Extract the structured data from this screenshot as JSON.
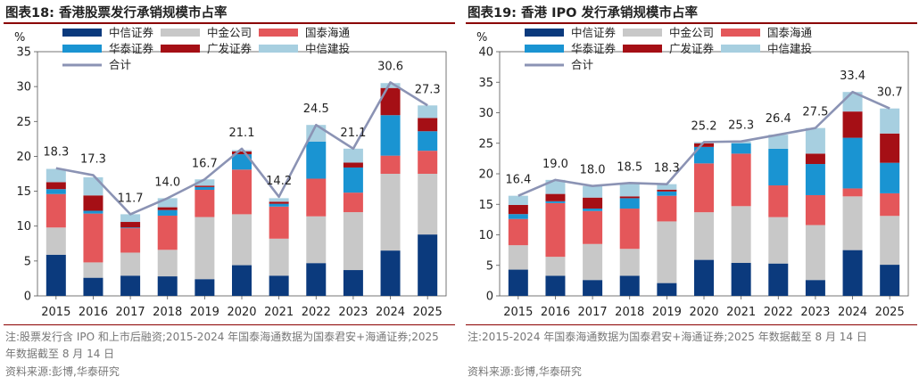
{
  "colors": {
    "citic": "#0b3a7d",
    "cicc": "#c8c8c8",
    "guotai_haitong": "#e4575a",
    "huatai": "#1a94d2",
    "gf": "#a50f15",
    "citic_construction": "#a7cfe0",
    "total_line": "#8b93b4",
    "rule": "#8b0000"
  },
  "chart_data": [
    {
      "type": "bar",
      "stacked": true,
      "title": "图表18:  香港股票发行承销规模市占率",
      "ylabel": "%",
      "ylim": [
        0,
        35
      ],
      "yticks": [
        0,
        5,
        10,
        15,
        20,
        25,
        30,
        35
      ],
      "categories": [
        "2015",
        "2016",
        "2017",
        "2018",
        "2019",
        "2020",
        "2021",
        "2022",
        "2023",
        "2024",
        "2025"
      ],
      "series": [
        {
          "name": "中信证券",
          "key": "citic",
          "values": [
            5.9,
            2.6,
            2.9,
            2.8,
            2.4,
            4.4,
            2.9,
            4.7,
            3.7,
            6.5,
            8.8
          ]
        },
        {
          "name": "中金公司",
          "key": "cicc",
          "values": [
            3.9,
            2.2,
            3.3,
            3.8,
            8.9,
            7.3,
            5.3,
            6.7,
            8.3,
            11.0,
            8.7
          ]
        },
        {
          "name": "国泰海通",
          "key": "guotai_haitong",
          "values": [
            4.8,
            7.0,
            3.5,
            4.9,
            3.9,
            6.4,
            4.6,
            5.4,
            2.8,
            2.6,
            3.3
          ]
        },
        {
          "name": "华泰证券",
          "key": "huatai",
          "values": [
            0.7,
            0.4,
            0.1,
            0.8,
            0.4,
            2.2,
            0.4,
            5.3,
            3.6,
            5.8,
            2.8
          ]
        },
        {
          "name": "广发证券",
          "key": "gf",
          "values": [
            1.0,
            2.2,
            0.8,
            0.4,
            0.2,
            0.4,
            0.3,
            0.0,
            0.7,
            3.9,
            1.9
          ]
        },
        {
          "name": "中信建投",
          "key": "citic_construction",
          "values": [
            1.9,
            2.6,
            1.1,
            1.3,
            0.9,
            0.2,
            0.5,
            2.4,
            2.0,
            0.7,
            1.8
          ]
        }
      ],
      "total": {
        "name": "合计",
        "key": "total_line",
        "values": [
          18.3,
          17.3,
          11.7,
          14.0,
          16.7,
          21.1,
          14.2,
          24.5,
          21.1,
          30.6,
          27.3
        ]
      },
      "note": "注:股票发行含 IPO 和上市后融资;2015-2024 年国泰海通数据为国泰君安+海通证券;2025 年数据截至 8 月 14 日",
      "source": "资料来源:彭博,华泰研究"
    },
    {
      "type": "bar",
      "stacked": true,
      "title": "图表19:  香港 IPO 发行承销规模市占率",
      "ylabel": "%",
      "ylim": [
        0,
        40
      ],
      "yticks": [
        0,
        5,
        10,
        15,
        20,
        25,
        30,
        35,
        40
      ],
      "categories": [
        "2015",
        "2016",
        "2017",
        "2018",
        "2019",
        "2020",
        "2021",
        "2022",
        "2023",
        "2024",
        "2025"
      ],
      "series": [
        {
          "name": "中信证券",
          "key": "citic",
          "values": [
            4.3,
            3.3,
            2.6,
            3.3,
            2.1,
            5.9,
            5.4,
            5.3,
            2.6,
            7.5,
            5.1
          ]
        },
        {
          "name": "中金公司",
          "key": "cicc",
          "values": [
            4.0,
            3.1,
            5.9,
            4.4,
            10.1,
            7.8,
            9.3,
            7.6,
            9.0,
            8.8,
            8.0
          ]
        },
        {
          "name": "国泰海通",
          "key": "guotai_haitong",
          "values": [
            4.3,
            8.8,
            5.4,
            6.6,
            4.2,
            8.0,
            8.6,
            5.2,
            4.9,
            1.3,
            3.7
          ]
        },
        {
          "name": "华泰证券",
          "key": "huatai",
          "values": [
            0.8,
            0.3,
            0.4,
            1.7,
            0.7,
            2.7,
            1.7,
            6.0,
            5.1,
            8.3,
            5.0
          ]
        },
        {
          "name": "广发证券",
          "key": "gf",
          "values": [
            1.5,
            1.2,
            1.8,
            0.3,
            0.3,
            0.6,
            0.0,
            0.0,
            1.7,
            4.3,
            4.8
          ]
        },
        {
          "name": "中信建投",
          "key": "citic_construction",
          "values": [
            1.5,
            2.3,
            1.9,
            2.2,
            0.9,
            0.2,
            0.3,
            2.3,
            4.2,
            3.2,
            4.1
          ]
        }
      ],
      "total": {
        "name": "合计",
        "key": "total_line",
        "values": [
          16.4,
          19.0,
          18.0,
          18.5,
          18.3,
          25.2,
          25.3,
          26.4,
          27.5,
          33.4,
          30.7
        ]
      },
      "note": "注:2015-2024 年国泰海通数据为国泰君安+海通证券;2025 年数据截至 8 月 14 日",
      "source": "资料来源:彭博,华泰研究"
    }
  ]
}
